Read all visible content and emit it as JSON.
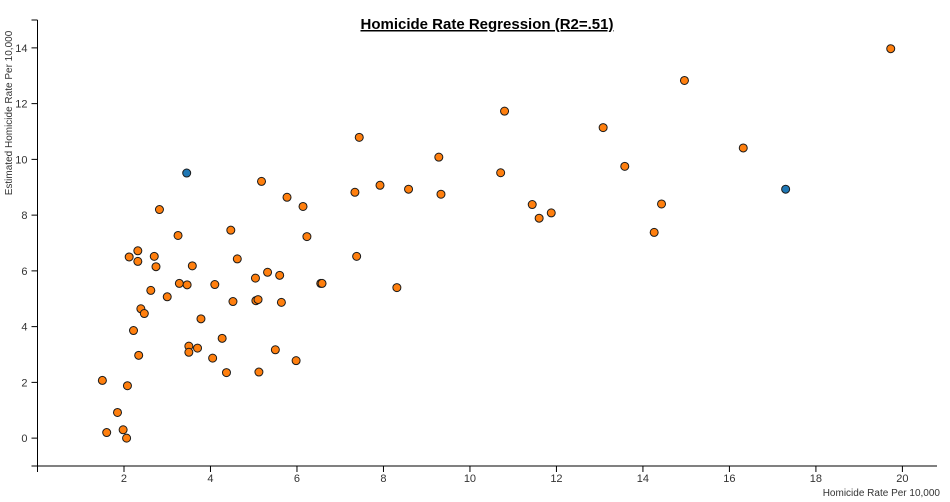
{
  "chart_data": {
    "type": "scatter",
    "title": "Homicide Rate Regression (R2=.51)",
    "xlabel": "Homicide Rate Per 10,000",
    "ylabel": "Estimated Homicide Rate Per 10,000",
    "xlim": [
      0,
      20.8
    ],
    "ylim": [
      -1,
      15
    ],
    "xticks": [
      2,
      4,
      6,
      8,
      10,
      12,
      14,
      16,
      18,
      20
    ],
    "yticks": [
      0,
      2,
      4,
      6,
      8,
      10,
      12,
      14
    ],
    "grid": false,
    "colors": {
      "default": "#ff7f0e",
      "highlight": "#1f77b4"
    },
    "points": [
      {
        "x": 1.5,
        "y": 2.07
      },
      {
        "x": 1.6,
        "y": 0.2
      },
      {
        "x": 1.85,
        "y": 0.92
      },
      {
        "x": 1.98,
        "y": 0.3
      },
      {
        "x": 2.06,
        "y": 0.0
      },
      {
        "x": 2.08,
        "y": 1.88
      },
      {
        "x": 2.12,
        "y": 6.5
      },
      {
        "x": 2.22,
        "y": 3.86
      },
      {
        "x": 2.32,
        "y": 6.72
      },
      {
        "x": 2.32,
        "y": 6.34
      },
      {
        "x": 2.34,
        "y": 2.97
      },
      {
        "x": 2.39,
        "y": 4.64
      },
      {
        "x": 2.47,
        "y": 4.47
      },
      {
        "x": 2.62,
        "y": 5.3
      },
      {
        "x": 2.7,
        "y": 6.52
      },
      {
        "x": 2.74,
        "y": 6.15
      },
      {
        "x": 2.82,
        "y": 8.2
      },
      {
        "x": 3.0,
        "y": 5.07
      },
      {
        "x": 3.25,
        "y": 7.27
      },
      {
        "x": 3.28,
        "y": 5.55
      },
      {
        "x": 3.46,
        "y": 5.5
      },
      {
        "x": 3.5,
        "y": 3.3
      },
      {
        "x": 3.5,
        "y": 3.08
      },
      {
        "x": 3.58,
        "y": 6.18
      },
      {
        "x": 3.7,
        "y": 3.23
      },
      {
        "x": 3.78,
        "y": 4.28
      },
      {
        "x": 4.05,
        "y": 2.87
      },
      {
        "x": 4.1,
        "y": 5.51
      },
      {
        "x": 4.27,
        "y": 3.58
      },
      {
        "x": 4.37,
        "y": 2.35
      },
      {
        "x": 4.47,
        "y": 7.46
      },
      {
        "x": 4.52,
        "y": 4.9
      },
      {
        "x": 4.62,
        "y": 6.43
      },
      {
        "x": 5.04,
        "y": 5.74
      },
      {
        "x": 5.05,
        "y": 4.93
      },
      {
        "x": 5.1,
        "y": 4.97
      },
      {
        "x": 5.12,
        "y": 2.37
      },
      {
        "x": 5.18,
        "y": 9.21
      },
      {
        "x": 5.32,
        "y": 5.95
      },
      {
        "x": 5.5,
        "y": 3.17
      },
      {
        "x": 5.6,
        "y": 5.84
      },
      {
        "x": 5.64,
        "y": 4.87
      },
      {
        "x": 5.77,
        "y": 8.64
      },
      {
        "x": 5.98,
        "y": 2.78
      },
      {
        "x": 6.14,
        "y": 8.31
      },
      {
        "x": 6.23,
        "y": 7.23
      },
      {
        "x": 6.55,
        "y": 5.55
      },
      {
        "x": 6.58,
        "y": 5.55
      },
      {
        "x": 7.34,
        "y": 8.82
      },
      {
        "x": 7.38,
        "y": 6.52
      },
      {
        "x": 7.44,
        "y": 10.79
      },
      {
        "x": 8.31,
        "y": 5.4
      },
      {
        "x": 7.92,
        "y": 9.07
      },
      {
        "x": 8.58,
        "y": 8.93
      },
      {
        "x": 9.28,
        "y": 10.08
      },
      {
        "x": 9.33,
        "y": 8.75
      },
      {
        "x": 10.71,
        "y": 9.52
      },
      {
        "x": 10.8,
        "y": 11.73
      },
      {
        "x": 11.44,
        "y": 8.38
      },
      {
        "x": 11.6,
        "y": 7.89
      },
      {
        "x": 11.88,
        "y": 8.08
      },
      {
        "x": 13.08,
        "y": 11.14
      },
      {
        "x": 13.58,
        "y": 9.75
      },
      {
        "x": 14.26,
        "y": 7.38
      },
      {
        "x": 14.43,
        "y": 8.4
      },
      {
        "x": 14.96,
        "y": 12.83
      },
      {
        "x": 16.32,
        "y": 10.41
      },
      {
        "x": 19.73,
        "y": 13.97
      },
      {
        "x": 3.45,
        "y": 9.51,
        "highlight": true
      },
      {
        "x": 17.3,
        "y": 8.93,
        "highlight": true
      }
    ]
  }
}
